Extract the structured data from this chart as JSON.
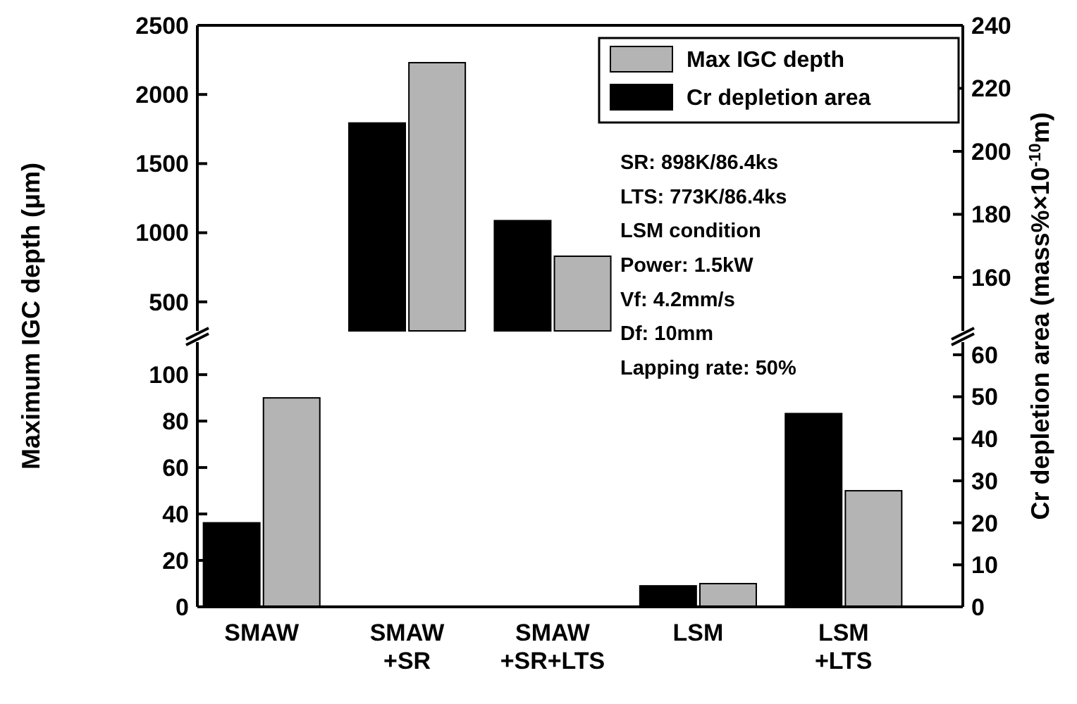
{
  "chart_data": [
    {
      "type": "bar",
      "ylabel": "Maximum IGC depth (μm)",
      "y2label": "Cr depletion area (mass%×10$^{-10}$m)",
      "legend": "top right",
      "tick_labels": "y",
      "categories": [
        null,
        null,
        null,
        null,
        null
      ],
      "series": [
        {
          "name": "Cr depletion area",
          "color": "#000000",
          "axis": "y2",
          "values": [
            null,
            209,
            178,
            null,
            null
          ]
        },
        {
          "name": "Max IGC depth",
          "color": "#b4b4b4",
          "values": [
            null,
            2230,
            830,
            null,
            null
          ]
        }
      ],
      "ylim": [
        290,
        2500
      ],
      "yticks": [
        500,
        1000,
        1500,
        2000,
        2500
      ],
      "y2lim": [
        143,
        240
      ],
      "y2ticks": [
        160,
        180,
        200,
        220,
        240
      ],
      "annotations": [
        "SR: 898K/86.4ks",
        "LTS: 773K/86.4ks",
        "LSM condition",
        "Power: 1.5kW",
        "Vf: 4.2mm/s",
        "Df: 10mm",
        "Lapping rate: 50%"
      ]
    },
    {
      "type": "bar",
      "categories": [
        "SMAW",
        "SMAW\n+SR",
        "SMAW\n+SR+LTS",
        "LSM",
        "LSM\n+LTS"
      ],
      "series": [
        {
          "color": "#000000",
          "axis": "y2",
          "values": [
            20,
            null,
            null,
            5,
            46
          ]
        },
        {
          "color": "#b4b4b4",
          "values": [
            90,
            null,
            null,
            10,
            50
          ]
        }
      ],
      "ylim": [
        0,
        114
      ],
      "yticks": [
        0,
        20,
        40,
        60,
        80,
        100
      ],
      "y2lim": [
        0,
        63
      ],
      "y2ticks": [
        0,
        10,
        20,
        30,
        40,
        50,
        60
      ]
    }
  ]
}
